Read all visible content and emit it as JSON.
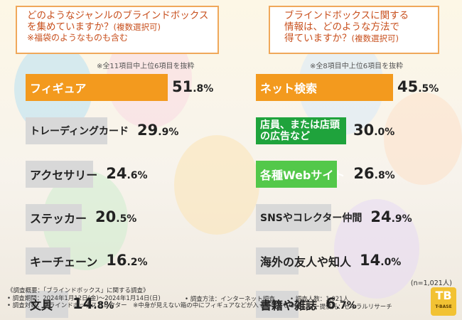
{
  "colors": {
    "accent": "#f39a1e",
    "green": "#1fa33c",
    "light_green": "#53c84a",
    "gray": "#d8d8d8"
  },
  "left_panel": {
    "question_line1": "どのようなジャンルのブラインドボックス",
    "question_line2": "を集めていますか？",
    "question_suffix": "(複数選択可)",
    "question_note": "※福袋のようなものも含む",
    "subnote": "※全11項目中上位6項目を抜粋"
  },
  "right_panel": {
    "question_line1": "ブラインドボックスに関する",
    "question_line2": "情報は、どのような方法で",
    "question_line3": "得ていますか？",
    "question_suffix": "(複数選択可)",
    "subnote": "※全8項目中上位6項目を抜粋"
  },
  "chart_data": [
    {
      "type": "bar",
      "orientation": "horizontal",
      "categories": [
        "フィギュア",
        "トレーディングカード",
        "アクセサリー",
        "ステッカー",
        "キーチェーン",
        "文具"
      ],
      "values": [
        51.8,
        29.9,
        24.6,
        20.5,
        16.2,
        14.8
      ],
      "value_labels": [
        [
          "51",
          ".8%"
        ],
        [
          "29",
          ".9%"
        ],
        [
          "24",
          ".6%"
        ],
        [
          "20",
          ".5%"
        ],
        [
          "16",
          ".2%"
        ],
        [
          "14",
          ".8%"
        ]
      ],
      "highlight": [
        "orange",
        "gray",
        "gray",
        "gray",
        "gray",
        "gray"
      ],
      "unit": "%"
    },
    {
      "type": "bar",
      "orientation": "horizontal",
      "categories": [
        "ネット検索",
        "店員、または店頭の広告など",
        "各種Webサイト",
        "SNSやコレクター仲間",
        "海外の友人や知人",
        "書籍や雑誌"
      ],
      "values": [
        45.5,
        30.0,
        26.8,
        24.9,
        14.0,
        6.7
      ],
      "value_labels": [
        [
          "45",
          ".5%"
        ],
        [
          "30",
          ".0%"
        ],
        [
          "26",
          ".8%"
        ],
        [
          "24",
          ".9%"
        ],
        [
          "14",
          ".0%"
        ],
        [
          "6",
          ".7%"
        ]
      ],
      "highlight": [
        "orange",
        "green",
        "lgreen",
        "gray",
        "gray",
        "gray"
      ],
      "unit": "%"
    }
  ],
  "n_label": "(n=1,021人)",
  "footer": {
    "line1": "《調査概要：「ブラインドボックス」に関する調査》",
    "line2a": "• 調査期間：2024年1月12日(金)～2024年1月14日(日)",
    "line2b": "• 調査方法：インターネット調査",
    "line2c": "• 調査人数：1,021人",
    "line3a": "• 調査対象：ブラインドボックスコレクター　※中身が見えない箱の中にフィギュアなどが入っているもの",
    "line3b": "• モニター提供元：ゼネラルリサーチ"
  },
  "logo": {
    "text": "TB",
    "sub": "T-BASE"
  }
}
